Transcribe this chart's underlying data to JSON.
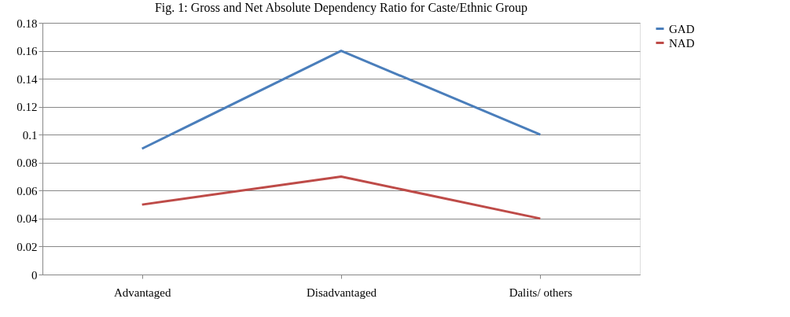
{
  "chart_data": {
    "type": "line",
    "title": "Fig. 1: Gross and Net Absolute Dependency Ratio for Caste/Ethnic Group",
    "categories": [
      "Advantaged",
      "Disadvantaged",
      "Dalits/ others"
    ],
    "series": [
      {
        "name": "GAD",
        "color": "#4a7ebb",
        "values": [
          0.09,
          0.16,
          0.1
        ]
      },
      {
        "name": "NAD",
        "color": "#be4b48",
        "values": [
          0.05,
          0.07,
          0.04
        ]
      }
    ],
    "ylim": [
      0,
      0.18
    ],
    "yticks": [
      0,
      0.02,
      0.04,
      0.06,
      0.08,
      0.1,
      0.12,
      0.14,
      0.16,
      0.18
    ],
    "grid": "y",
    "legend": "right",
    "marker": "none",
    "line_style": "solid"
  }
}
